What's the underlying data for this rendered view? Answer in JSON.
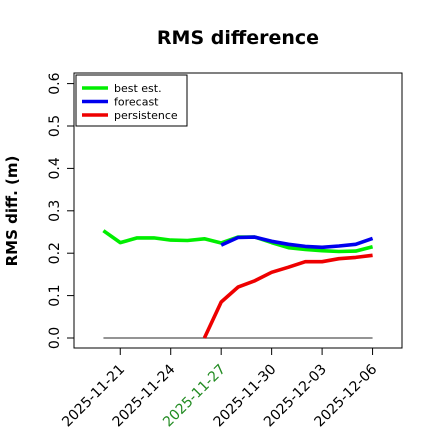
{
  "chart_data": {
    "type": "line",
    "title": "RMS difference",
    "xlabel": "",
    "ylabel": "RMS diff. (m)",
    "ylim": [
      0,
      0.65
    ],
    "yticks": [
      "0.0",
      "0.1",
      "0.2",
      "0.3",
      "0.4",
      "0.5",
      "0.6"
    ],
    "yticks_values": [
      0,
      0.1,
      0.2,
      0.3,
      0.4,
      0.5,
      0.6
    ],
    "xticks": [
      "2025-11-21",
      "2025-11-24",
      "2025-11-27",
      "2025-11-30",
      "2025-12-03",
      "2025-12-06"
    ],
    "xticks_day": [
      0,
      3,
      6,
      9,
      12,
      15
    ],
    "xticks_colors": [
      "#000000",
      "#000000",
      "#228B22",
      "#000000",
      "#000000",
      "#000000"
    ],
    "xlim_day": [
      -2.75,
      16.75
    ],
    "legend_position": "top-left",
    "baseline_value": 0,
    "series": [
      {
        "name": "best est.",
        "color": "#00ee00",
        "x": [
          "2025-11-20",
          "2025-11-21",
          "2025-11-22",
          "2025-11-23",
          "2025-11-24",
          "2025-11-25",
          "2025-11-26",
          "2025-11-27",
          "2025-11-28",
          "2025-11-29",
          "2025-11-30",
          "2025-12-01",
          "2025-12-02",
          "2025-12-03",
          "2025-12-04",
          "2025-12-05",
          "2025-12-06"
        ],
        "x_day": [
          -1,
          0,
          1,
          2,
          3,
          4,
          5,
          6,
          7,
          8,
          9,
          10,
          11,
          12,
          13,
          14,
          15
        ],
        "values": [
          0.253,
          0.225,
          0.236,
          0.236,
          0.231,
          0.23,
          0.234,
          0.224,
          0.238,
          0.238,
          0.225,
          0.213,
          0.209,
          0.206,
          0.204,
          0.205,
          0.215
        ]
      },
      {
        "name": "forecast",
        "color": "#0000ee",
        "x": [
          "2025-11-27",
          "2025-11-28",
          "2025-11-29",
          "2025-11-30",
          "2025-12-01",
          "2025-12-02",
          "2025-12-03",
          "2025-12-04",
          "2025-12-05",
          "2025-12-06"
        ],
        "x_day": [
          6,
          7,
          8,
          9,
          10,
          11,
          12,
          13,
          14,
          15
        ],
        "values": [
          0.219,
          0.237,
          0.238,
          0.228,
          0.221,
          0.216,
          0.214,
          0.217,
          0.221,
          0.235
        ]
      },
      {
        "name": "persistence",
        "color": "#ee0000",
        "x": [
          "2025-11-26",
          "2025-11-27",
          "2025-11-28",
          "2025-11-29",
          "2025-11-30",
          "2025-12-01",
          "2025-12-02",
          "2025-12-03",
          "2025-12-04",
          "2025-12-05",
          "2025-12-06"
        ],
        "x_day": [
          5,
          6,
          7,
          8,
          9,
          10,
          11,
          12,
          13,
          14,
          15
        ],
        "values": [
          0.0,
          0.085,
          0.12,
          0.135,
          0.155,
          0.167,
          0.18,
          0.18,
          0.187,
          0.19,
          0.195
        ]
      }
    ]
  }
}
